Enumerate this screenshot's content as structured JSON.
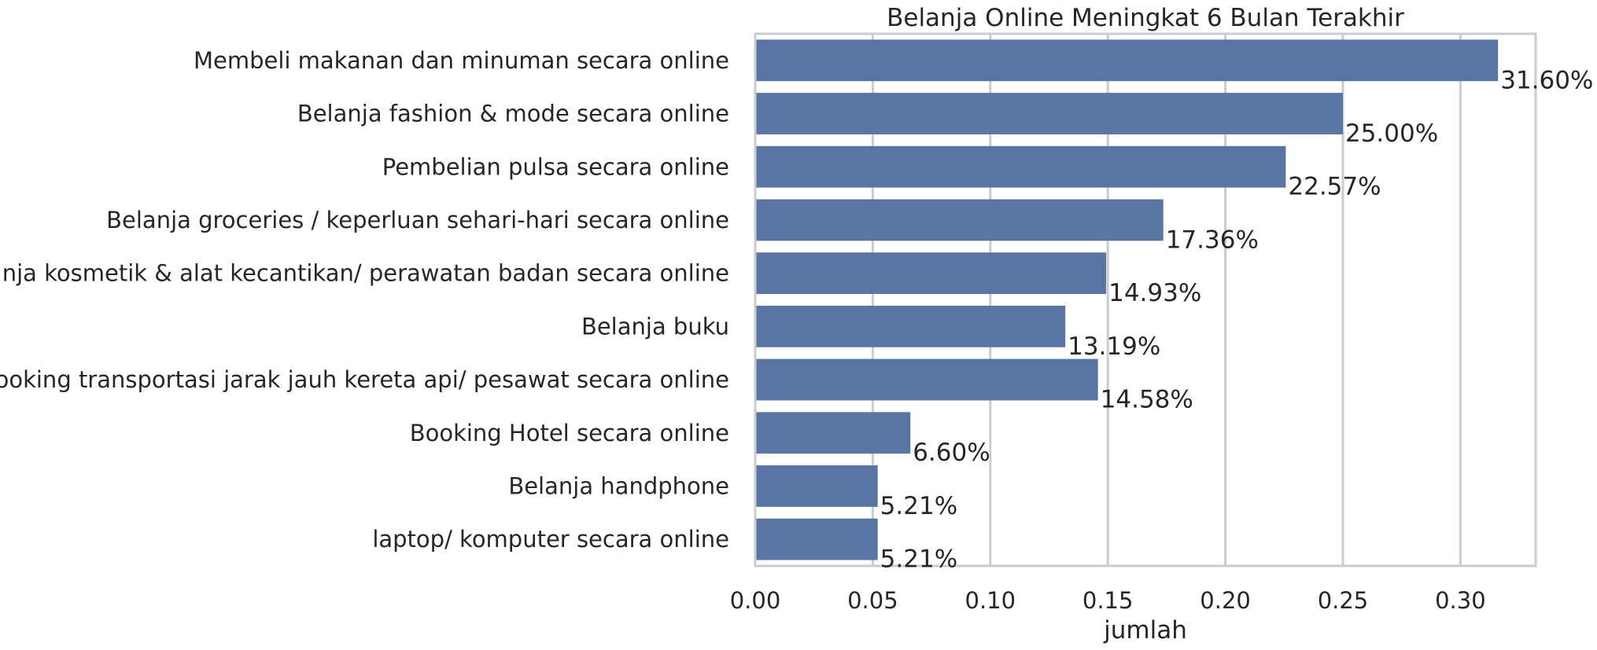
{
  "chart_data": {
    "type": "bar",
    "orientation": "horizontal",
    "title": "Belanja Online Meningkat 6 Bulan Terakhir",
    "xlabel": "jumlah",
    "ylabel": "",
    "xlim": [
      0,
      0.332
    ],
    "xticks": [
      0.0,
      0.05,
      0.1,
      0.15,
      0.2,
      0.25,
      0.3
    ],
    "xtick_labels": [
      "0.00",
      "0.05",
      "0.10",
      "0.15",
      "0.20",
      "0.25",
      "0.30"
    ],
    "grid": "vertical",
    "bar_color": "#5875a4",
    "categories": [
      "Membeli makanan dan minuman secara online",
      "Belanja fashion & mode secara online",
      "Pembelian pulsa secara online",
      "Belanja groceries / keperluan sehari-hari secara online",
      "Belanja kosmetik & alat kecantikan/ perawatan badan secara online",
      "Belanja buku",
      "Booking transportasi jarak jauh kereta api/ pesawat secara online",
      "Booking Hotel secara online",
      "Belanja handphone",
      "laptop/ komputer secara online"
    ],
    "values": [
      0.316,
      0.25,
      0.2257,
      0.1736,
      0.1493,
      0.1319,
      0.1458,
      0.066,
      0.0521,
      0.0521
    ],
    "data_labels": [
      "31.60%",
      "25.00%",
      "22.57%",
      "17.36%",
      "14.93%",
      "13.19%",
      "14.58%",
      "6.60%",
      "5.21%",
      "5.21%"
    ]
  }
}
